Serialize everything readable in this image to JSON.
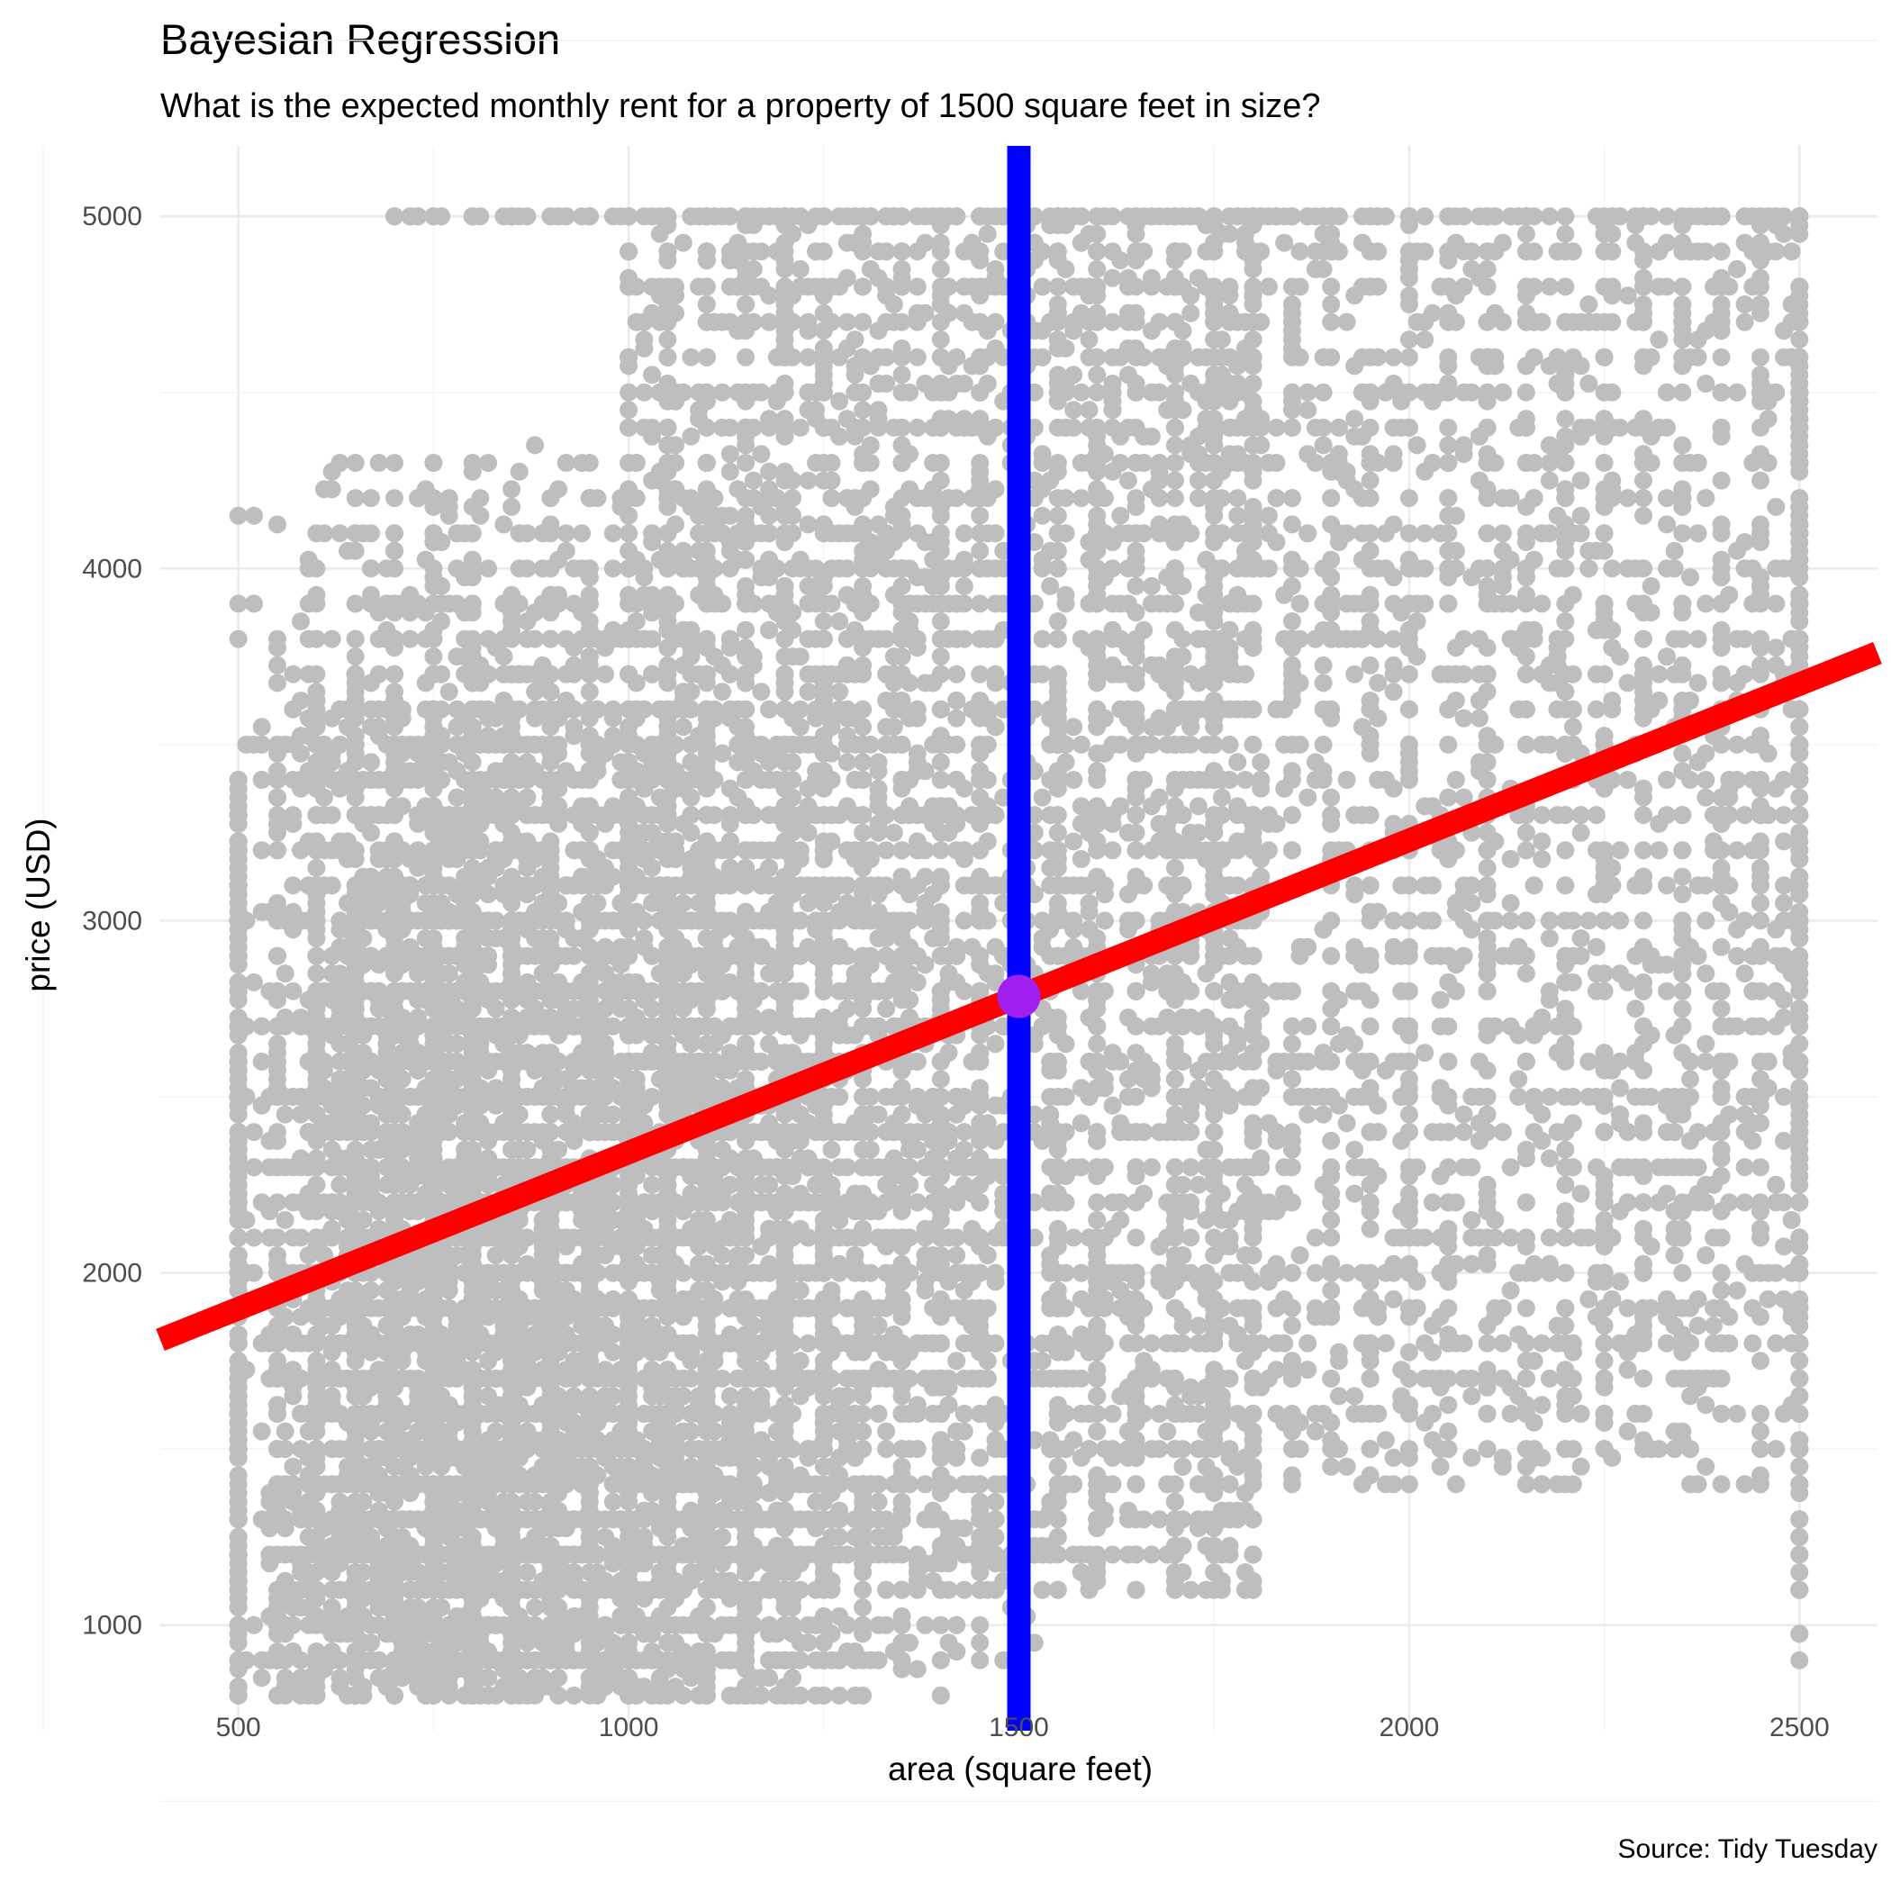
{
  "chart_data": {
    "type": "scatter",
    "title": "Bayesian Regression",
    "subtitle": "What is the expected monthly rent for a property of 1500 square feet in size?",
    "xlabel": "area (square feet)",
    "ylabel": "price (USD)",
    "caption": "Source: Tidy Tuesday",
    "xlim": [
      400,
      2600
    ],
    "ylim": [
      700,
      5200
    ],
    "x_ticks": [
      500,
      1000,
      1500,
      2000,
      2500
    ],
    "y_ticks": [
      1000,
      2000,
      3000,
      4000,
      5000
    ],
    "grid": true,
    "legend": "none",
    "point_color": "#bebebe",
    "points": {
      "x_range": [
        500,
        2500
      ],
      "y_range": [
        800,
        5000
      ],
      "dense_region": "500-1500 square feet"
    },
    "regression_line": {
      "color": "#ff0000",
      "intercept": 1455,
      "slope": 0.8867
    },
    "vertical_line": {
      "x": 1500,
      "color": "#0000ff"
    },
    "highlight_point": {
      "x": 1500,
      "y": 2785,
      "color": "#a020f0"
    }
  }
}
